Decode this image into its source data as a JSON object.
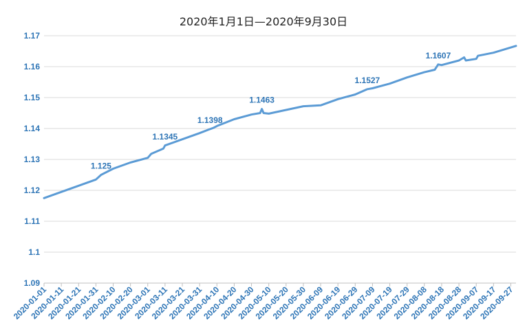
{
  "chart_data": {
    "type": "line",
    "title": "2020年1月1日—2020年9月30日",
    "xlabel": "",
    "ylabel": "",
    "ylim": [
      1.09,
      1.17
    ],
    "yticks": [
      "1.09",
      "1.1",
      "1.11",
      "1.12",
      "1.13",
      "1.14",
      "1.15",
      "1.16",
      "1.17"
    ],
    "xticks": [
      "2020-01-01",
      "2020-01-11",
      "2020-01-21",
      "2020-01-31",
      "2020-02-10",
      "2020-02-20",
      "2020-03-01",
      "2020-03-11",
      "2020-03-21",
      "2020-03-31",
      "2020-04-10",
      "2020-04-20",
      "2020-04-30",
      "2020-05-10",
      "2020-05-20",
      "2020-05-30",
      "2020-06-09",
      "2020-06-19",
      "2020-06-29",
      "2020-07-09",
      "2020-07-19",
      "2020-07-29",
      "2020-08-08",
      "2020-08-18",
      "2020-08-28",
      "2020-09-07",
      "2020-09-17",
      "2020-09-27"
    ],
    "grid": true,
    "legend": "none",
    "line_color": "#5b9bd5",
    "label_color": "#2e75b6",
    "series": [
      {
        "x": [
          "2020-01-01",
          "2020-01-11",
          "2020-01-21",
          "2020-01-31",
          "2020-02-03",
          "2020-02-10",
          "2020-02-20",
          "2020-03-01",
          "2020-03-03",
          "2020-03-10",
          "2020-03-11",
          "2020-03-21",
          "2020-03-31",
          "2020-04-06",
          "2020-04-08",
          "2020-04-10",
          "2020-04-20",
          "2020-04-30",
          "2020-05-05",
          "2020-05-06",
          "2020-05-07",
          "2020-05-10",
          "2020-05-20",
          "2020-05-30",
          "2020-06-09",
          "2020-06-19",
          "2020-06-29",
          "2020-07-06",
          "2020-07-09",
          "2020-07-19",
          "2020-07-29",
          "2020-08-08",
          "2020-08-14",
          "2020-08-16",
          "2020-08-18",
          "2020-08-28",
          "2020-08-31",
          "2020-09-01",
          "2020-09-07",
          "2020-09-08",
          "2020-09-17",
          "2020-09-27",
          "2020-09-30"
        ],
        "values": [
          1.1175,
          1.1195,
          1.1215,
          1.1235,
          1.125,
          1.127,
          1.129,
          1.1305,
          1.1318,
          1.1335,
          1.1345,
          1.1365,
          1.1385,
          1.1398,
          1.1402,
          1.1408,
          1.143,
          1.1445,
          1.145,
          1.1463,
          1.145,
          1.1448,
          1.146,
          1.1472,
          1.1475,
          1.1495,
          1.151,
          1.1527,
          1.153,
          1.1545,
          1.1565,
          1.1582,
          1.159,
          1.1607,
          1.1605,
          1.162,
          1.163,
          1.162,
          1.1625,
          1.1635,
          1.1645,
          1.1662,
          1.1667
        ]
      }
    ],
    "data_labels": [
      {
        "x": "2020-02-03",
        "y": 1.125,
        "text": "1.125"
      },
      {
        "x": "2020-03-11",
        "y": 1.1345,
        "text": "1.1345"
      },
      {
        "x": "2020-04-06",
        "y": 1.1398,
        "text": "1.1398"
      },
      {
        "x": "2020-05-06",
        "y": 1.1463,
        "text": "1.1463"
      },
      {
        "x": "2020-07-06",
        "y": 1.1527,
        "text": "1.1527"
      },
      {
        "x": "2020-08-16",
        "y": 1.1607,
        "text": "1.1607"
      }
    ]
  }
}
